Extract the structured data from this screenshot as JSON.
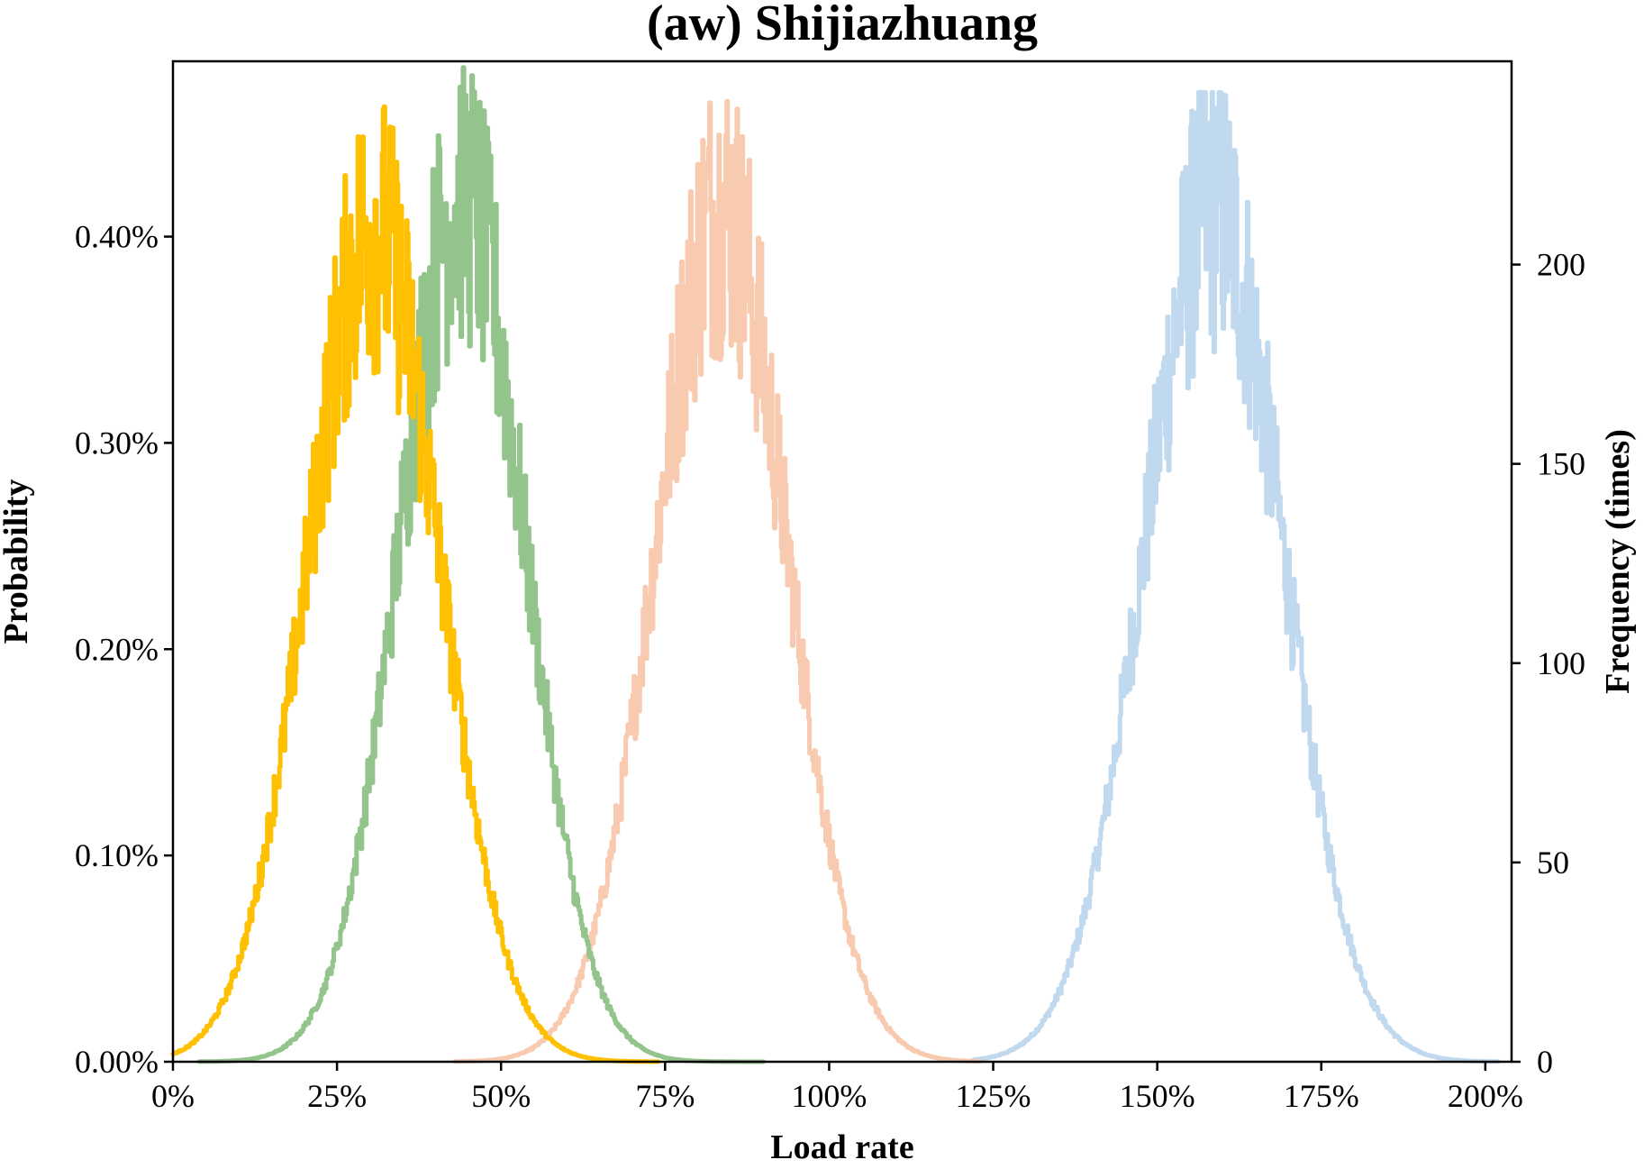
{
  "chart_data": {
    "type": "line",
    "title": "(aw) Shijiazhuang",
    "xlabel": "Load rate",
    "ylabel": "Probability",
    "ylabel_right": "Frequency (times)",
    "xlim": [
      0,
      2.04
    ],
    "ylim": [
      0,
      0.00485
    ],
    "ylim_right": [
      0,
      251
    ],
    "x_ticks": [
      0,
      0.25,
      0.5,
      0.75,
      1.0,
      1.25,
      1.5,
      1.75,
      2.0
    ],
    "x_tick_labels": [
      "0%",
      "25%",
      "50%",
      "75%",
      "100%",
      "125%",
      "150%",
      "175%",
      "200%"
    ],
    "y_ticks": [
      0,
      0.001,
      0.002,
      0.003,
      0.004
    ],
    "y_tick_labels": [
      "0.00%",
      "0.10%",
      "0.20%",
      "0.30%",
      "0.40%"
    ],
    "y_ticks_right": [
      0,
      50,
      100,
      150,
      200
    ],
    "y_tick_labels_right": [
      "0",
      "50",
      "100",
      "150",
      "200"
    ],
    "grid": false,
    "legend": "none",
    "series": [
      {
        "color": "#c0d9ef",
        "x_range": [
          1.22,
          2.02
        ],
        "mean": 1.585,
        "sd": 0.105,
        "peak_probability": 0.00415,
        "max_probability": 0.0047
      },
      {
        "color": "#f8cbb0",
        "x_range": [
          0.43,
          1.23
        ],
        "mean": 0.835,
        "sd": 0.1,
        "peak_probability": 0.00415,
        "max_probability": 0.00482
      },
      {
        "color": "#93c48b",
        "x_range": [
          0.04,
          0.9
        ],
        "mean": 0.44,
        "sd": 0.095,
        "peak_probability": 0.0042,
        "max_probability": 0.00482
      },
      {
        "color": "#fec000",
        "x_range": [
          0.0,
          0.74
        ],
        "mean": 0.305,
        "sd": 0.1,
        "peak_probability": 0.00405,
        "max_probability": 0.00484
      }
    ]
  }
}
